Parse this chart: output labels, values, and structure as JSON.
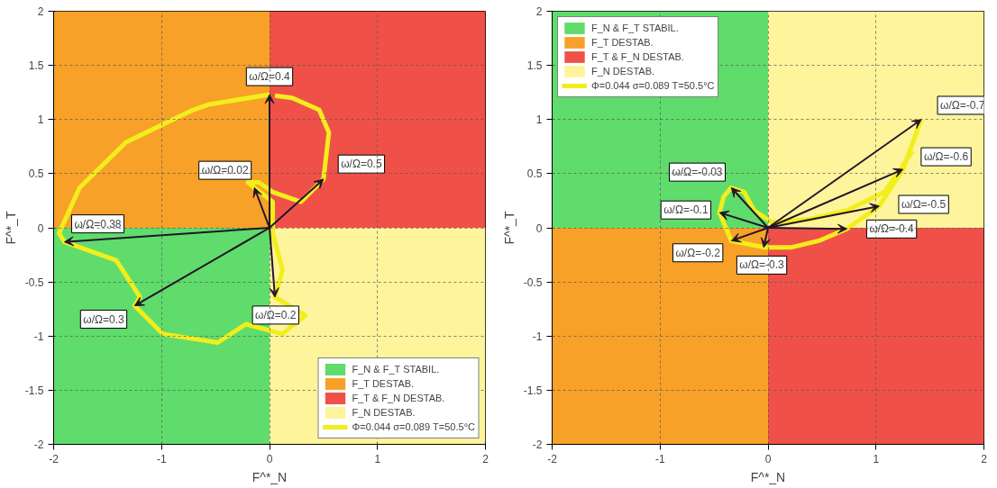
{
  "chart_data": [
    {
      "type": "line",
      "xlabel": "F^*_N",
      "ylabel": "F^*_T",
      "xlim": [
        -2,
        2
      ],
      "ylim": [
        -2,
        2
      ],
      "xticks": [
        -2,
        -1,
        0,
        1,
        2
      ],
      "yticks": [
        -2,
        -1.5,
        -1,
        -0.5,
        0,
        0.5,
        1,
        1.5,
        2
      ],
      "grid": true,
      "legend": "bottom right",
      "series": [
        {
          "name": "F_N & F_T STABIL.",
          "type": "area",
          "color": "#5fdc6c",
          "x": [
            -2,
            0
          ],
          "values": [
            -2,
            -2
          ]
        },
        {
          "name": "F_T DESTAB.",
          "type": "area",
          "color": "#f7a129",
          "x": [
            -2,
            0
          ],
          "values": [
            2,
            2
          ]
        },
        {
          "name": "F_T & F_N DESTAB.",
          "type": "area",
          "color": "#ef5148",
          "x": [
            0,
            2
          ],
          "values": [
            2,
            2
          ]
        },
        {
          "name": "F_N DESTAB.",
          "type": "area",
          "color": "#fdf49b",
          "x": [
            0,
            2
          ],
          "values": [
            -2,
            -2
          ]
        },
        {
          "name": "Φ=0.044 σ=0.089 T=50.5°C",
          "color": "#f2ee1c",
          "x": [
            0,
            -0.56,
            -0.73,
            -1.33,
            -1.76,
            -1.95,
            -1.9,
            -1.42,
            -1.2,
            -1.25,
            -0.99,
            -0.48,
            -0.22,
            0.12,
            0.33,
            0.05,
            0.12,
            0.03,
            0.03,
            -0.14,
            -0.2,
            -0.1,
            0.03,
            0.29,
            0.5,
            0.55,
            0.46,
            0.21,
            0.05
          ],
          "values": [
            1.23,
            1.14,
            1.08,
            0.79,
            0.37,
            -0.05,
            -0.13,
            -0.3,
            -0.64,
            -0.72,
            -0.98,
            -1.06,
            -0.89,
            -0.98,
            -0.81,
            -0.64,
            -0.39,
            -0.05,
            0.24,
            0.37,
            0.42,
            0.42,
            0.33,
            0.24,
            0.45,
            0.88,
            1.09,
            1.2,
            1.22
          ]
        }
      ],
      "annotations": [
        {
          "text": "ω/Ω=0.4",
          "x": 0,
          "y": 1.23
        },
        {
          "text": "ω/Ω=0.02",
          "x": -0.14,
          "y": 0.37
        },
        {
          "text": "ω/Ω=0.5",
          "x": 0.5,
          "y": 0.45
        },
        {
          "text": "ω/Ω=0.38",
          "x": -1.9,
          "y": -0.13
        },
        {
          "text": "ω/Ω=0.3",
          "x": -1.25,
          "y": -0.72
        },
        {
          "text": "ω/Ω=0.2",
          "x": 0.05,
          "y": -0.64
        }
      ]
    },
    {
      "type": "line",
      "xlabel": "F^*_N",
      "ylabel": "F^*_T",
      "xlim": [
        -2,
        2
      ],
      "ylim": [
        -2,
        2
      ],
      "xticks": [
        -2,
        -1,
        0,
        1,
        2
      ],
      "yticks": [
        -2,
        -1.5,
        -1,
        -0.5,
        0,
        0.5,
        1,
        1.5,
        2
      ],
      "grid": true,
      "legend": "top left",
      "series": [
        {
          "name": "F_N & F_T STABIL.",
          "type": "area",
          "color": "#5fdc6c",
          "x": [
            -2,
            0
          ],
          "values": [
            2,
            2
          ]
        },
        {
          "name": "F_T DESTAB.",
          "type": "area",
          "color": "#f7a129",
          "x": [
            -2,
            0
          ],
          "values": [
            -2,
            -2
          ]
        },
        {
          "name": "F_T & F_N DESTAB.",
          "type": "area",
          "color": "#ef5148",
          "x": [
            0,
            2
          ],
          "values": [
            -2,
            -2
          ]
        },
        {
          "name": "F_N DESTAB.",
          "type": "area",
          "color": "#fdf49b",
          "x": [
            0,
            2
          ],
          "values": [
            2,
            2
          ]
        },
        {
          "name": "Φ=0.044 σ=0.089 T=50.5°C",
          "color": "#f2ee1c",
          "x": [
            1.42,
            1.25,
            1.03,
            0.73,
            0.47,
            0.22,
            -0.04,
            -0.34,
            -0.45,
            -0.41,
            -0.34,
            -0.22,
            -0.13,
            0.04,
            0.39,
            0.73,
            1.08,
            1.34
          ],
          "values": [
            1.0,
            0.54,
            0.2,
            -0.01,
            -0.12,
            -0.18,
            -0.18,
            -0.12,
            0.14,
            0.29,
            0.37,
            0.33,
            0.16,
            0.05,
            0.08,
            0.16,
            0.33,
            0.71
          ]
        }
      ],
      "annotations": [
        {
          "text": "ω/Ω=-0.7",
          "x": 1.42,
          "y": 1.0
        },
        {
          "text": "ω/Ω=-0.6",
          "x": 1.25,
          "y": 0.54
        },
        {
          "text": "ω/Ω=-0.5",
          "x": 1.03,
          "y": 0.2
        },
        {
          "text": "ω/Ω=-0.4",
          "x": 0.73,
          "y": -0.01
        },
        {
          "text": "ω/Ω=-0.3",
          "x": -0.04,
          "y": -0.18
        },
        {
          "text": "ω/Ω=-0.2",
          "x": -0.34,
          "y": -0.12
        },
        {
          "text": "ω/Ω=-0.1",
          "x": -0.45,
          "y": 0.14
        },
        {
          "text": "ω/Ω=-0.03",
          "x": -0.34,
          "y": 0.37
        }
      ]
    }
  ]
}
